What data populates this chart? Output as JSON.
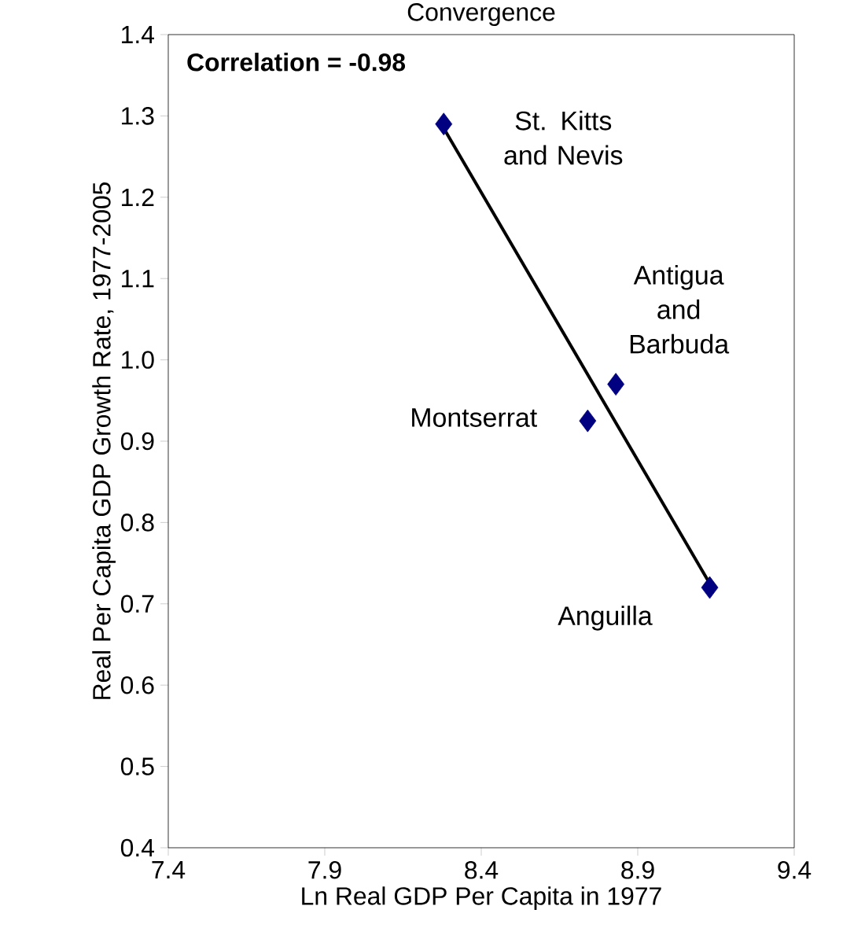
{
  "chart_data": {
    "type": "scatter",
    "title": "Convergence",
    "xlabel": "Ln Real GDP Per Capita in 1977",
    "ylabel": "Real Per Capita GDP Growth Rate, 1977-2005",
    "xlim": [
      7.4,
      9.4
    ],
    "xticks": [
      7.4,
      7.9,
      8.4,
      8.9,
      9.4
    ],
    "ylim": [
      0.4,
      1.4
    ],
    "yticks": [
      0.4,
      0.5,
      0.6,
      0.7,
      0.8,
      0.9,
      {
        "value": 1.0,
        "label": "1.0"
      },
      1.1,
      1.2,
      1.3,
      1.4
    ],
    "grid": false,
    "marker": "diamond",
    "series": [
      {
        "color": "#000080",
        "x": [
          8.28,
          8.83,
          8.74,
          9.13
        ],
        "values": [
          1.29,
          0.97,
          0.925,
          0.72
        ]
      },
      {
        "type": "line",
        "marker": "none",
        "color": "#000000",
        "x": [
          8.28,
          9.13
        ],
        "values": [
          1.285,
          0.725
        ]
      }
    ],
    "annotations": [
      "Correlation = -0.98",
      {
        "text": "St. Kitts and Nevis",
        "x": 8.28,
        "y": 1.29
      },
      {
        "text": "Antigua and Barbuda",
        "x": 8.83,
        "y": 0.97
      },
      {
        "text": "Montserrat",
        "x": 8.74,
        "y": 0.925
      },
      {
        "text": "Anguilla",
        "x": 9.13,
        "y": 0.72
      }
    ]
  }
}
